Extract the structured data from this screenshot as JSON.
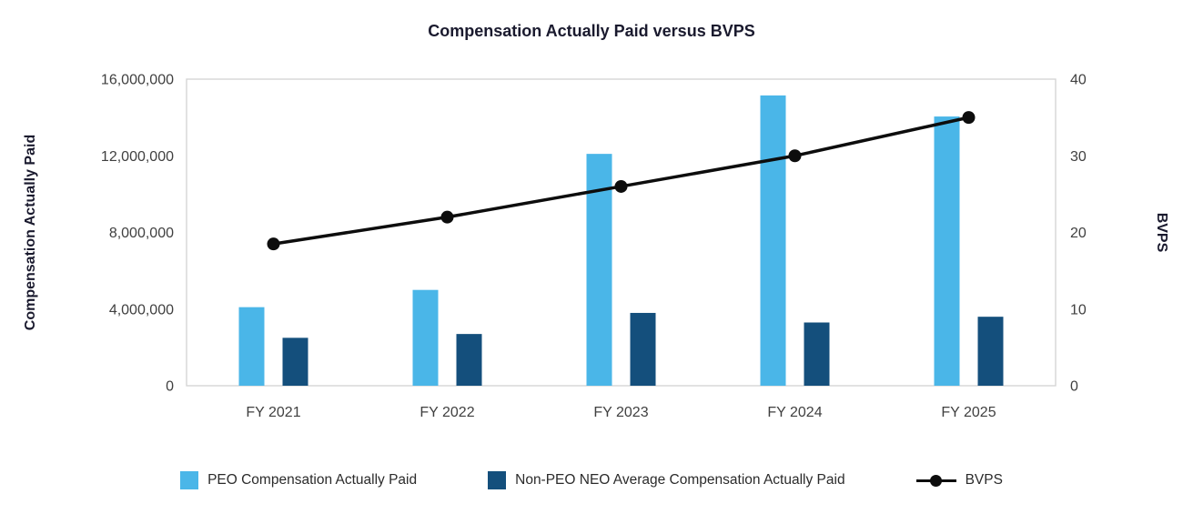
{
  "chart_data": {
    "type": "combo",
    "title": "Compensation Actually Paid versus BVPS",
    "categories": [
      "FY 2021",
      "FY 2022",
      "FY 2023",
      "FY 2024",
      "FY 2025"
    ],
    "series": [
      {
        "name": "PEO Compensation Actually Paid",
        "type": "bar",
        "axis": "left",
        "color": "#4ab6e8",
        "values": [
          4100000,
          5000000,
          12100000,
          15150000,
          14050000
        ]
      },
      {
        "name": "Non-PEO NEO Average Compensation Actually Paid",
        "type": "bar",
        "axis": "left",
        "color": "#144f7c",
        "values": [
          2500000,
          2700000,
          3800000,
          3300000,
          3600000
        ]
      },
      {
        "name": "BVPS",
        "type": "line",
        "axis": "right",
        "color": "#0d0d0d",
        "values": [
          18.5,
          22,
          26,
          30,
          35
        ]
      }
    ],
    "ylabel_left": "Compensation Actually Paid",
    "ylabel_right": "BVPS",
    "ylim_left": [
      0,
      16000000
    ],
    "ylim_right": [
      0,
      40
    ],
    "y_left_ticks": [
      {
        "value": 0,
        "label": "0"
      },
      {
        "value": 4000000,
        "label": "4,000,000"
      },
      {
        "value": 8000000,
        "label": "8,000,000"
      },
      {
        "value": 12000000,
        "label": "12,000,000"
      },
      {
        "value": 16000000,
        "label": "16,000,000"
      }
    ],
    "y_right_ticks": [
      {
        "value": 0,
        "label": "0"
      },
      {
        "value": 10,
        "label": "10"
      },
      {
        "value": 20,
        "label": "20"
      },
      {
        "value": 30,
        "label": "30"
      },
      {
        "value": 40,
        "label": "40"
      }
    ],
    "grid": "plot box only, no inner gridlines",
    "legend_position": "bottom"
  }
}
